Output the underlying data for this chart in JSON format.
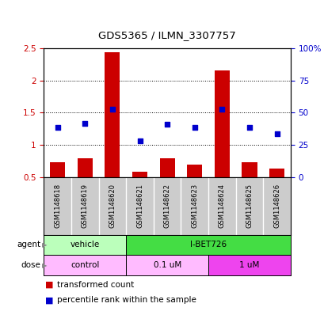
{
  "title": "GDS5365 / ILMN_3307757",
  "samples": [
    "GSM1148618",
    "GSM1148619",
    "GSM1148620",
    "GSM1148621",
    "GSM1148622",
    "GSM1148623",
    "GSM1148624",
    "GSM1148625",
    "GSM1148626"
  ],
  "bar_values": [
    0.73,
    0.8,
    2.44,
    0.58,
    0.8,
    0.7,
    2.15,
    0.73,
    0.63
  ],
  "dot_values": [
    1.27,
    1.33,
    1.55,
    1.07,
    1.32,
    1.27,
    1.55,
    1.27,
    1.17
  ],
  "ylim": [
    0.5,
    2.5
  ],
  "yticks_left": [
    0.5,
    1.0,
    1.5,
    2.0,
    2.5
  ],
  "yticks_right": [
    0,
    25,
    50,
    75,
    100
  ],
  "ytick_labels_left": [
    "0.5",
    "1",
    "1.5",
    "2",
    "2.5"
  ],
  "ytick_labels_right": [
    "0",
    "25",
    "50",
    "75",
    "100%"
  ],
  "bar_color": "#cc0000",
  "dot_color": "#0000cc",
  "grid_color": "#000000",
  "agent_color_vehicle": "#bbffbb",
  "agent_color_ibet": "#44dd44",
  "dose_color_control": "#ffbbff",
  "dose_color_01um": "#ffbbff",
  "dose_color_1um": "#ee44ee",
  "legend_items": [
    "transformed count",
    "percentile rank within the sample"
  ],
  "legend_colors": [
    "#cc0000",
    "#0000cc"
  ],
  "bg_color": "#ffffff",
  "spine_color": "#000000",
  "ylabel_left_color": "#cc0000",
  "ylabel_right_color": "#0000cc"
}
